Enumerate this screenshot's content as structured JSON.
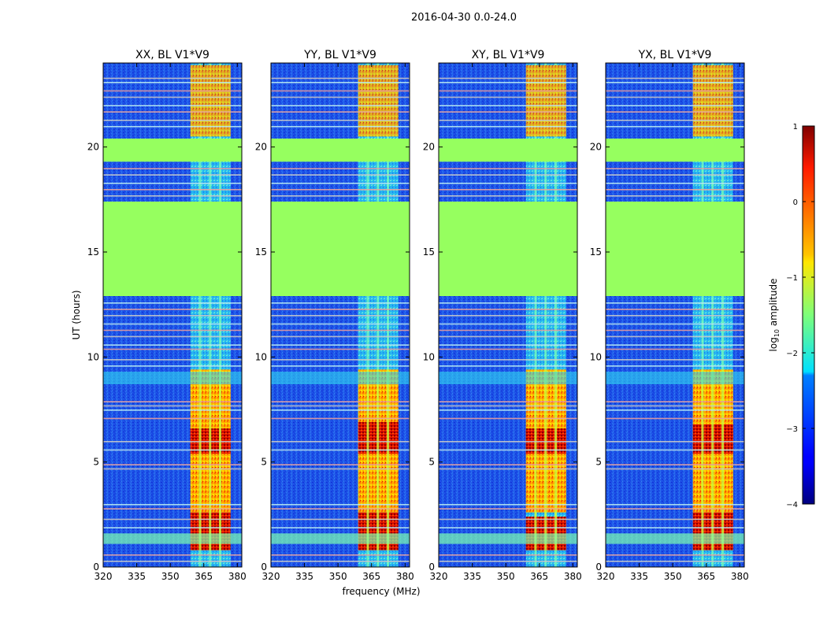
{
  "figure": {
    "suptitle": "2016-04-30 0.0-24.0",
    "xlabel": "frequency (MHz)",
    "ylabel": "UT (hours)"
  },
  "colorbar": {
    "label_prefix": "log",
    "label_sub": "10",
    "label_suffix": " amplitude",
    "range": [
      -4,
      1
    ],
    "ticks": [
      1,
      0,
      -1,
      -2,
      -3,
      -4
    ],
    "tick_labels": [
      "1",
      "0",
      "−1",
      "−2",
      "−3",
      "−4"
    ],
    "colormap": "jet"
  },
  "chart_data": [
    {
      "type": "heatmap",
      "title": "XX, BL V1*V9",
      "xlim": [
        320,
        382
      ],
      "ylim": [
        0,
        24
      ],
      "xticks": [
        "320",
        "335",
        "350",
        "365",
        "380"
      ],
      "yticks": [
        "0",
        "5",
        "10",
        "15",
        "20"
      ],
      "flagged_ut_ranges": [
        [
          12.9,
          17.4
        ],
        [
          19.3,
          20.4
        ]
      ],
      "strong_band_mhz": [
        359,
        377
      ],
      "strong_ut_ranges": [
        [
          0.8,
          2.6
        ],
        [
          5.4,
          6.6
        ]
      ]
    },
    {
      "type": "heatmap",
      "title": "YY, BL V1*V9",
      "xlim": [
        320,
        382
      ],
      "ylim": [
        0,
        24
      ],
      "xticks": [
        "320",
        "335",
        "350",
        "365",
        "380"
      ],
      "yticks": [
        "0",
        "5",
        "10",
        "15",
        "20"
      ],
      "flagged_ut_ranges": [
        [
          12.9,
          17.4
        ],
        [
          19.3,
          20.4
        ]
      ],
      "strong_band_mhz": [
        359,
        377
      ],
      "strong_ut_ranges": [
        [
          0.8,
          2.6
        ],
        [
          5.4,
          6.9
        ]
      ]
    },
    {
      "type": "heatmap",
      "title": "XY, BL V1*V9",
      "xlim": [
        320,
        382
      ],
      "ylim": [
        0,
        24
      ],
      "xticks": [
        "320",
        "335",
        "350",
        "365",
        "380"
      ],
      "yticks": [
        "0",
        "5",
        "10",
        "15",
        "20"
      ],
      "flagged_ut_ranges": [
        [
          12.9,
          17.4
        ],
        [
          19.3,
          20.4
        ]
      ],
      "strong_band_mhz": [
        359,
        377
      ],
      "strong_ut_ranges": [
        [
          0.8,
          2.4
        ],
        [
          5.4,
          6.6
        ]
      ]
    },
    {
      "type": "heatmap",
      "title": "YX, BL V1*V9",
      "xlim": [
        320,
        382
      ],
      "ylim": [
        0,
        24
      ],
      "xticks": [
        "320",
        "335",
        "350",
        "365",
        "380"
      ],
      "yticks": [
        "0",
        "5",
        "10",
        "15",
        "20"
      ],
      "flagged_ut_ranges": [
        [
          12.9,
          17.4
        ],
        [
          19.3,
          20.4
        ]
      ],
      "strong_band_mhz": [
        359,
        377
      ],
      "strong_ut_ranges": [
        [
          0.8,
          2.6
        ],
        [
          5.4,
          6.8
        ]
      ]
    }
  ]
}
